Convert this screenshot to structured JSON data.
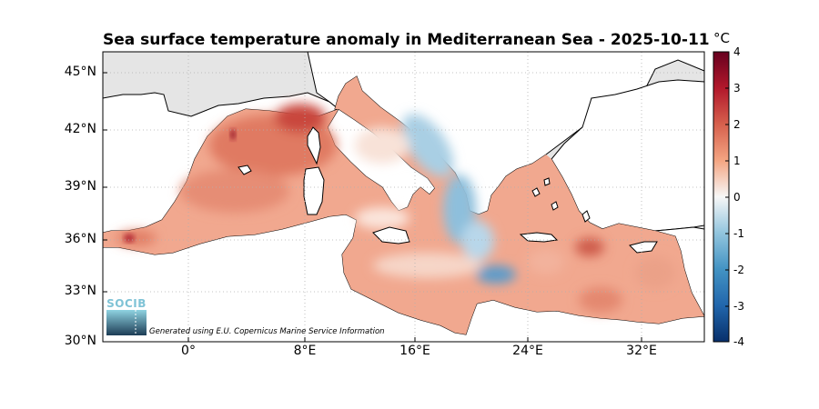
{
  "title": "Sea surface temperature anomaly in Mediterranean Sea - 2025-10-11",
  "colorbar": {
    "unit": "°C",
    "ticks": [
      "4",
      "3",
      "2",
      "1",
      "0",
      "-1",
      "-2",
      "-3",
      "-4"
    ],
    "range": [
      -4,
      4
    ],
    "colors": [
      "#08306b",
      "#2166ac",
      "#4393c3",
      "#92c5de",
      "#f7f7f7",
      "#f4a582",
      "#d6604d",
      "#b2182b",
      "#67001f"
    ]
  },
  "axes": {
    "lat_labels": [
      "45°N",
      "42°N",
      "39°N",
      "36°N",
      "33°N",
      "30°N"
    ],
    "lon_labels": [
      "0°",
      "8°E",
      "16°E",
      "24°E",
      "32°E"
    ],
    "lat_range": [
      30,
      46
    ],
    "lon_range": [
      -6,
      36.5
    ]
  },
  "logo": {
    "text": "SOCIB"
  },
  "credit": "Generated using E.U. Copernicus Marine Service Information",
  "colors": {
    "land": "#ffffff",
    "background": "#e5e5e5",
    "coast": "#000000"
  }
}
